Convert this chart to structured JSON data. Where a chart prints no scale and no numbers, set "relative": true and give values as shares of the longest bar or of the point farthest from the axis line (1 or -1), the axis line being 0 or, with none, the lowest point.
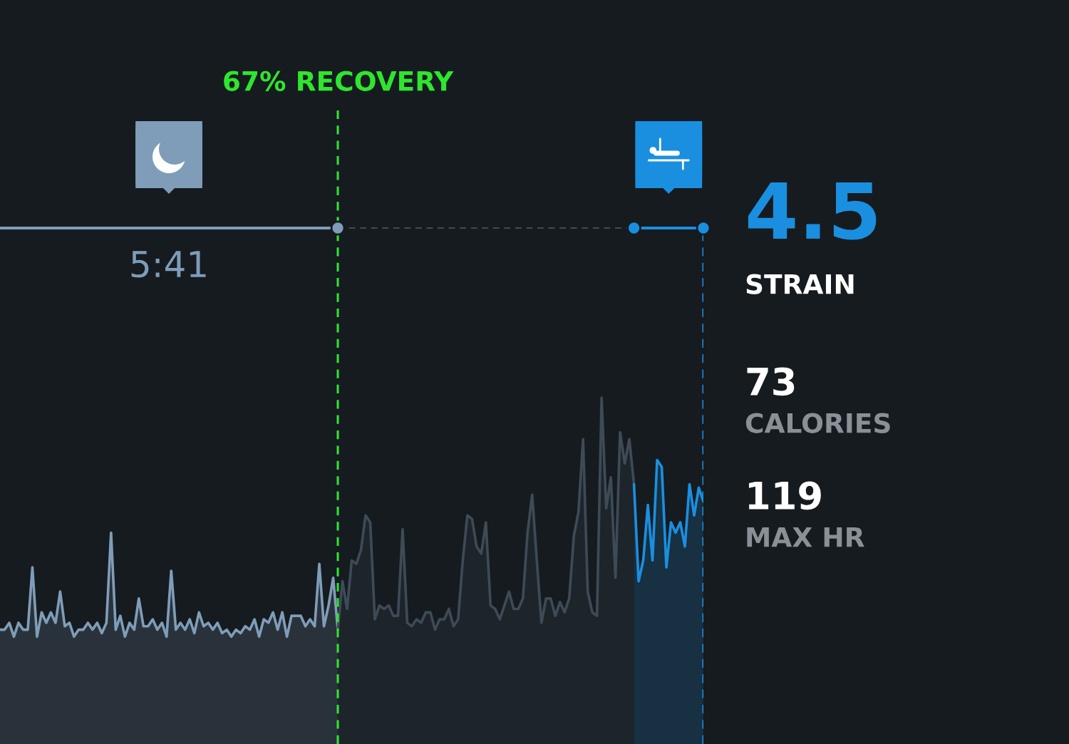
{
  "chart_data": {
    "type": "area",
    "relative": true,
    "categories": [
      null,
      null,
      null,
      null,
      null,
      null,
      null,
      null,
      null,
      null,
      null,
      null,
      null,
      null,
      null,
      null,
      null,
      null,
      null,
      null,
      null,
      null,
      null,
      null,
      null,
      null,
      null,
      null,
      null,
      null,
      null,
      null,
      null,
      null,
      null,
      null,
      null,
      null,
      null,
      null,
      null,
      null,
      null,
      null,
      null,
      null,
      null,
      null,
      null,
      null,
      null,
      null,
      null,
      null,
      null,
      null,
      null,
      null,
      null,
      null,
      null,
      null,
      null,
      null,
      null,
      null,
      null,
      null,
      null,
      null,
      null,
      null,
      null,
      null,
      null,
      null,
      null,
      null,
      null,
      null,
      null,
      null,
      null,
      null,
      null,
      null,
      null,
      null,
      null,
      null,
      null,
      null,
      null,
      null,
      null,
      null,
      null,
      null,
      null,
      null,
      null,
      null,
      null,
      null,
      null,
      null,
      null,
      null,
      null,
      null,
      null,
      null,
      null,
      null,
      null,
      null,
      null,
      null,
      null,
      null,
      null,
      null,
      null,
      null,
      null,
      null,
      null,
      null,
      null,
      null,
      null,
      null,
      null,
      null,
      null,
      null,
      null,
      null,
      null,
      null,
      null,
      null,
      null,
      null,
      null,
      null,
      null,
      null,
      null,
      null,
      null,
      null,
      null
    ],
    "series": [
      {
        "color": "#7f9db8",
        "values": [
          0.33,
          0.33,
          0.35,
          0.31,
          0.35,
          0.33,
          0.33,
          0.51,
          0.31,
          0.38,
          0.35,
          0.38,
          0.35,
          0.44,
          0.34,
          0.35,
          0.31,
          0.33,
          0.33,
          0.35,
          0.33,
          0.35,
          0.32,
          0.35,
          0.61,
          0.33,
          0.37,
          0.31,
          0.35,
          0.33,
          0.42,
          0.34,
          0.34,
          0.36,
          0.33,
          0.35,
          0.31,
          0.5,
          0.33,
          0.35,
          0.33,
          0.36,
          0.32,
          0.38,
          0.34,
          0.35,
          0.33,
          0.35,
          0.32,
          0.33,
          0.31,
          0.33,
          0.32,
          0.34,
          0.33,
          0.36,
          0.31,
          0.36,
          0.35,
          0.38,
          0.33,
          0.38,
          0.31,
          0.37,
          0.37,
          0.37,
          0.34,
          0.36,
          0.34,
          0.52,
          0.34,
          0.4,
          0.48,
          0.33,
          null,
          null,
          null,
          null,
          null,
          null,
          null,
          null,
          null,
          null,
          null,
          null,
          null,
          null,
          null,
          null,
          null,
          null,
          null,
          null,
          null,
          null,
          null,
          null,
          null,
          null,
          null,
          null,
          null,
          null,
          null,
          null,
          null,
          null,
          null,
          null,
          null,
          null,
          null,
          null,
          null,
          null,
          null,
          null,
          null,
          null,
          null,
          null,
          null,
          null,
          null,
          null,
          null,
          null,
          null,
          null,
          null,
          null,
          null,
          null,
          null,
          null,
          null,
          null,
          null,
          null,
          null,
          null,
          null,
          null,
          null,
          null,
          null,
          null,
          null,
          null,
          null,
          null,
          null
        ]
      },
      {
        "color": "#3d4b57",
        "values": [
          null,
          null,
          null,
          null,
          null,
          null,
          null,
          null,
          null,
          null,
          null,
          null,
          null,
          null,
          null,
          null,
          null,
          null,
          null,
          null,
          null,
          null,
          null,
          null,
          null,
          null,
          null,
          null,
          null,
          null,
          null,
          null,
          null,
          null,
          null,
          null,
          null,
          null,
          null,
          null,
          null,
          null,
          null,
          null,
          null,
          null,
          null,
          null,
          null,
          null,
          null,
          null,
          null,
          null,
          null,
          null,
          null,
          null,
          null,
          null,
          null,
          null,
          null,
          null,
          null,
          null,
          null,
          null,
          null,
          null,
          null,
          null,
          null,
          0.33,
          0.47,
          0.39,
          0.53,
          0.52,
          0.56,
          0.66,
          0.64,
          0.36,
          0.4,
          0.39,
          0.4,
          0.37,
          0.37,
          0.62,
          0.35,
          0.34,
          0.36,
          0.35,
          0.38,
          0.38,
          0.33,
          0.36,
          0.36,
          0.39,
          0.34,
          0.36,
          0.53,
          0.66,
          0.65,
          0.57,
          0.55,
          0.64,
          0.4,
          0.39,
          0.36,
          0.4,
          0.44,
          0.39,
          0.39,
          0.42,
          0.61,
          0.72,
          0.53,
          0.35,
          0.42,
          0.42,
          0.37,
          0.41,
          0.38,
          0.42,
          0.6,
          0.67,
          0.88,
          0.44,
          0.38,
          0.37,
          1.0,
          0.68,
          0.77,
          0.48,
          0.9,
          0.81,
          0.88,
          0.75,
          null,
          null,
          null,
          null,
          null,
          null,
          null,
          null,
          null,
          null,
          null,
          null,
          null,
          null,
          null
        ]
      },
      {
        "color": "#1a8fe0",
        "values": [
          null,
          null,
          null,
          null,
          null,
          null,
          null,
          null,
          null,
          null,
          null,
          null,
          null,
          null,
          null,
          null,
          null,
          null,
          null,
          null,
          null,
          null,
          null,
          null,
          null,
          null,
          null,
          null,
          null,
          null,
          null,
          null,
          null,
          null,
          null,
          null,
          null,
          null,
          null,
          null,
          null,
          null,
          null,
          null,
          null,
          null,
          null,
          null,
          null,
          null,
          null,
          null,
          null,
          null,
          null,
          null,
          null,
          null,
          null,
          null,
          null,
          null,
          null,
          null,
          null,
          null,
          null,
          null,
          null,
          null,
          null,
          null,
          null,
          null,
          null,
          null,
          null,
          null,
          null,
          null,
          null,
          null,
          null,
          null,
          null,
          null,
          null,
          null,
          null,
          null,
          null,
          null,
          null,
          null,
          null,
          null,
          null,
          null,
          null,
          null,
          null,
          null,
          null,
          null,
          null,
          null,
          null,
          null,
          null,
          null,
          null,
          null,
          null,
          null,
          null,
          null,
          null,
          null,
          null,
          null,
          null,
          null,
          null,
          null,
          null,
          null,
          null,
          null,
          null,
          null,
          null,
          null,
          null,
          null,
          null,
          null,
          null,
          0.75,
          0.47,
          0.53,
          0.69,
          0.53,
          0.82,
          0.8,
          0.51,
          0.64,
          0.61,
          0.64,
          0.57,
          0.75,
          0.66,
          0.74,
          0.7
        ]
      }
    ],
    "annotations": [
      "67% RECOVERY",
      "5:41",
      "4.5",
      "STRAIN",
      "73",
      "CALORIES",
      "119",
      "MAX HR"
    ]
  }
}
